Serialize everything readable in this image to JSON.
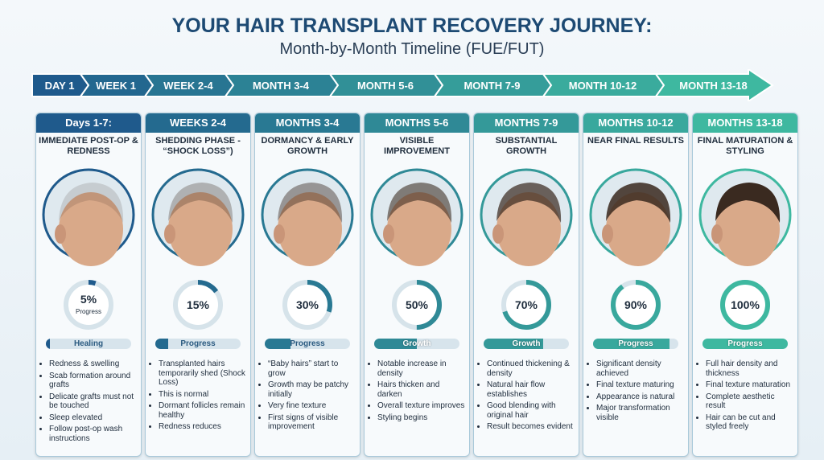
{
  "header": {
    "title": "YOUR HAIR TRANSPLANT RECOVERY JOURNEY:",
    "subtitle": "Month-by-Month Timeline (FUE/FUT)"
  },
  "timeline": [
    "DAY 1",
    "WEEK 1",
    "WEEK 2-4",
    "MONTH 3-4",
    "MONTH 5-6",
    "MONTH 7-9",
    "MONTH 10-12",
    "MONTH 13-18"
  ],
  "cards": [
    {
      "period": "Days 1-7:",
      "title": "IMMEDIATE POST-OP & REDNESS",
      "progress": {
        "value": 5,
        "label": "5%"
      },
      "progress_caption": "Progress",
      "stage": "Healing",
      "bullets": [
        "Redness & swelling",
        "Scab formation around grafts",
        "Delicate grafts must not be touched",
        "Sleep elevated",
        "Follow post-op wash instructions"
      ]
    },
    {
      "period": "WEEKS 2-4",
      "title": "SHEDDING PHASE - “SHOCK LOSS”)",
      "progress": {
        "value": 15,
        "label": "15%"
      },
      "stage": "Progress",
      "bullets": [
        "Transplanted hairs temporarily shed (Shock Loss)",
        "This is normal",
        "Dormant follicles remain healthy",
        "Redness reduces"
      ]
    },
    {
      "period": "MONTHS 3-4",
      "title": "DORMANCY & EARLY GROWTH",
      "progress": {
        "value": 30,
        "label": "30%"
      },
      "stage": "Progress",
      "bullets": [
        "“Baby hairs” start to grow",
        "Growth may be patchy initially",
        "Very fine texture",
        "First signs of visible improvement"
      ]
    },
    {
      "period": "MONTHS 5-6",
      "title": "VISIBLE IMPROVEMENT",
      "progress": {
        "value": 50,
        "label": "50%"
      },
      "stage": "Growth",
      "bullets": [
        "Notable increase in density",
        "Hairs thicken and darken",
        "Overall texture improves",
        "Styling begins"
      ]
    },
    {
      "period": "MONTHS 7-9",
      "title": "SUBSTANTIAL GROWTH",
      "progress": {
        "value": 70,
        "label": "70%"
      },
      "stage": "Growth",
      "bullets": [
        "Continued thickening & density",
        "Natural hair flow establishes",
        "Good blending with original hair",
        "Result becomes evident"
      ]
    },
    {
      "period": "MONTHS 10-12",
      "title": "NEAR FINAL RESULTS",
      "progress": {
        "value": 90,
        "label": "90%"
      },
      "stage": "Progress",
      "bullets": [
        "Significant density achieved",
        "Final texture maturing",
        "Appearance is natural",
        "Major transformation visible"
      ]
    },
    {
      "period": "MONTHS 13-18",
      "title": "FINAL MATURATION & STYLING",
      "progress": {
        "value": 100,
        "label": "100%"
      },
      "stage": "Progress",
      "bullets": [
        "Full hair density and thickness",
        "Final texture maturation",
        "Complete aesthetic result",
        "Hair can be cut and styled freely"
      ]
    }
  ]
}
